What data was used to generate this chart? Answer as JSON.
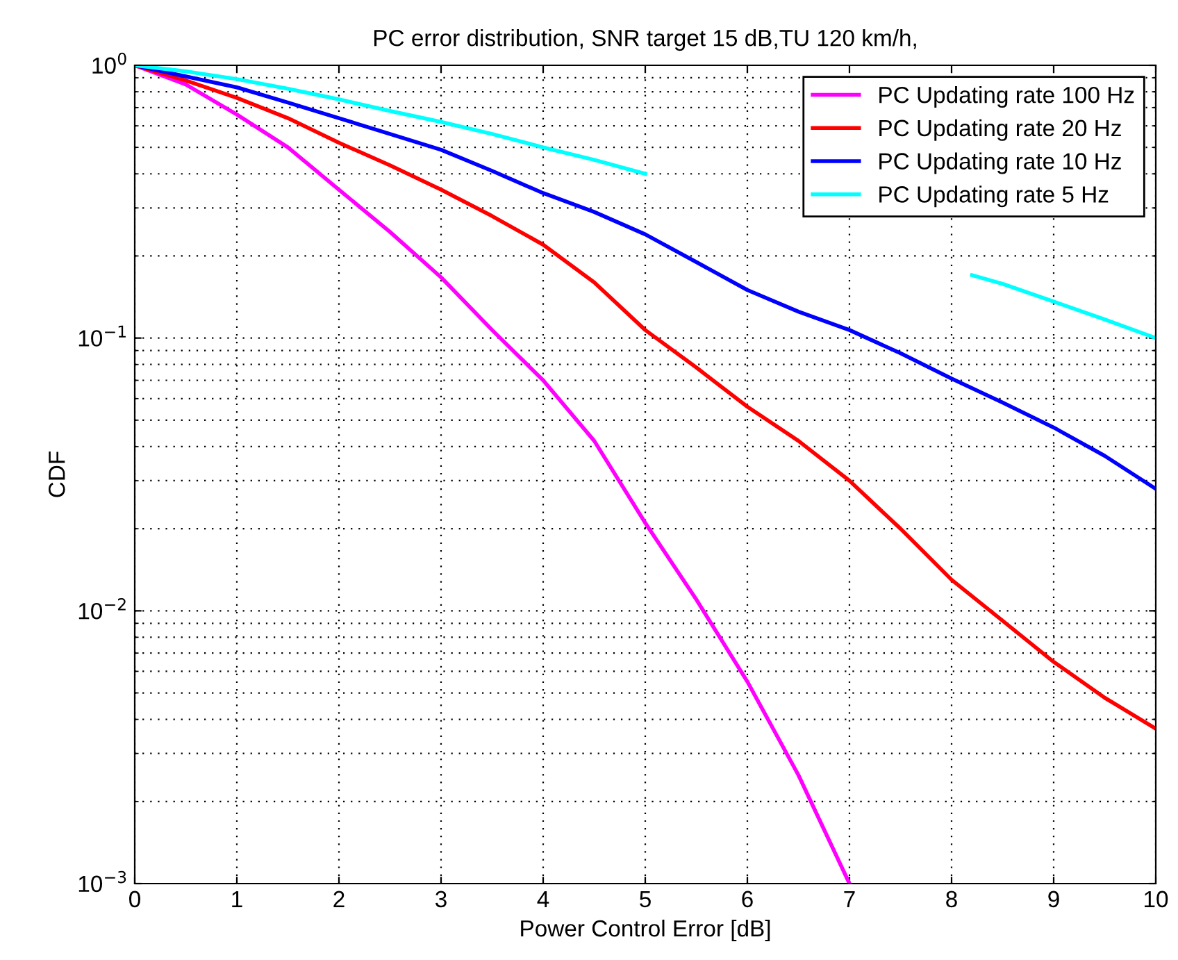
{
  "chart_data": {
    "type": "line",
    "title": "PC error distribution, SNR target 15 dB,TU 120 km/h,",
    "xlabel": "Power Control Error [dB]",
    "ylabel": "CDF",
    "log": "y",
    "xlim": [
      0,
      10
    ],
    "xticks": [
      0,
      1,
      2,
      3,
      4,
      5,
      6,
      7,
      8,
      9,
      10
    ],
    "ylim": [
      0.001,
      1
    ],
    "yticks": [
      {
        "value": 0.001,
        "label": "10$^{−3}$"
      },
      {
        "value": 0.01,
        "label": "10$^{−2}$"
      },
      {
        "value": 0.1,
        "label": "10$^{−1}$"
      },
      {
        "value": 1,
        "label": "10$^{0}$"
      }
    ],
    "grid": true,
    "legend": "top right",
    "line_style": "solid",
    "marker": "none",
    "series": [
      {
        "name": "PC Updating rate 100 Hz",
        "color": "#ff00ff",
        "x": [
          0,
          0.5,
          1,
          1.5,
          2,
          2.5,
          3,
          3.5,
          4,
          4.5,
          5,
          5.5,
          6,
          6.5,
          7
        ],
        "values": [
          1,
          0.85,
          0.66,
          0.5,
          0.35,
          0.245,
          0.167,
          0.107,
          0.07,
          0.042,
          0.021,
          0.011,
          0.0055,
          0.0025,
          0.001
        ]
      },
      {
        "name": "PC Updating rate 20 Hz",
        "color": "#ff0000",
        "x": [
          0,
          0.5,
          1,
          1.5,
          2,
          2.5,
          3,
          3.5,
          4,
          4.5,
          5,
          5.5,
          6,
          6.5,
          7,
          7.5,
          8,
          8.5,
          9,
          9.5,
          10
        ],
        "values": [
          1,
          0.88,
          0.76,
          0.64,
          0.52,
          0.43,
          0.35,
          0.28,
          0.22,
          0.16,
          0.107,
          0.078,
          0.056,
          0.042,
          0.03,
          0.02,
          0.013,
          0.0092,
          0.0065,
          0.0048,
          0.0037
        ]
      },
      {
        "name": "PC Updating rate 10 Hz",
        "color": "#0000ff",
        "x": [
          0,
          0.5,
          1,
          1.5,
          2,
          2.5,
          3,
          3.5,
          4,
          4.5,
          5,
          5.5,
          6,
          6.5,
          7,
          7.5,
          8,
          8.5,
          9,
          9.5,
          10
        ],
        "values": [
          1,
          0.91,
          0.83,
          0.73,
          0.64,
          0.56,
          0.49,
          0.41,
          0.34,
          0.29,
          0.24,
          0.19,
          0.15,
          0.125,
          0.107,
          0.088,
          0.071,
          0.058,
          0.047,
          0.037,
          0.028
        ]
      },
      {
        "name": "PC Updating rate 5 Hz",
        "color": "#00ffff",
        "x": [
          0,
          0.5,
          1,
          1.5,
          2,
          2.5,
          3,
          3.5,
          4,
          4.5,
          5,
          5.5,
          8.2,
          8.5,
          9,
          9.5,
          10
        ],
        "values": [
          1,
          0.95,
          0.89,
          0.82,
          0.75,
          0.68,
          0.62,
          0.56,
          0.5,
          0.45,
          0.4,
          null,
          0.17,
          0.158,
          0.136,
          0.117,
          0.1
        ]
      }
    ]
  }
}
